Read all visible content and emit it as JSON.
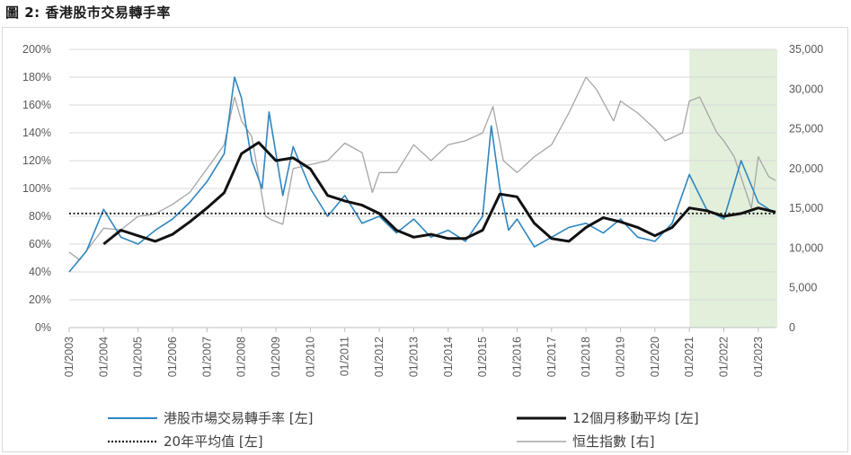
{
  "title": "圖 2:  香港股市交易轉手率",
  "colors": {
    "turnover": "#2e86c1",
    "ma12": "#111111",
    "avg20": "#222222",
    "hsi": "#a6a6a6",
    "shade": "#e2efda",
    "grid": "#d9d9d9"
  },
  "chart_data": {
    "type": "line",
    "title": "香港股市交易轉手率",
    "x_start": "01/2003",
    "x_end": "06/2023",
    "x_ticks": [
      "01/2003",
      "01/2004",
      "01/2005",
      "01/2006",
      "01/2007",
      "01/2008",
      "01/2009",
      "01/2010",
      "01/2011",
      "01/2012",
      "01/2013",
      "01/2014",
      "01/2015",
      "01/2016",
      "01/2017",
      "01/2018",
      "01/2019",
      "01/2020",
      "01/2021",
      "01/2022",
      "01/2023"
    ],
    "y_left": {
      "min": 0,
      "max": 200,
      "step": 20,
      "ticks": [
        "0%",
        "20%",
        "40%",
        "60%",
        "80%",
        "100%",
        "120%",
        "140%",
        "160%",
        "180%",
        "200%"
      ]
    },
    "y_right": {
      "min": 0,
      "max": 35000,
      "step": 5000,
      "ticks": [
        "0",
        "5,000",
        "10,000",
        "15,000",
        "20,000",
        "25,000",
        "30,000",
        "35,000"
      ]
    },
    "shaded_region": {
      "from": "01/2021",
      "to": "06/2023"
    },
    "series": [
      {
        "name": "港股市場交易轉手率 [左]",
        "axis": "left",
        "style": "thin-line",
        "x": [
          2003.0,
          2003.5,
          2004.0,
          2004.5,
          2005.0,
          2005.5,
          2006.0,
          2006.5,
          2007.0,
          2007.5,
          2007.8,
          2008.0,
          2008.3,
          2008.6,
          2008.8,
          2009.2,
          2009.5,
          2010.0,
          2010.5,
          2011.0,
          2011.5,
          2012.0,
          2012.5,
          2013.0,
          2013.5,
          2014.0,
          2014.5,
          2015.0,
          2015.25,
          2015.5,
          2015.75,
          2016.0,
          2016.5,
          2017.0,
          2017.5,
          2018.0,
          2018.5,
          2019.0,
          2019.5,
          2020.0,
          2020.5,
          2021.0,
          2021.5,
          2022.0,
          2022.5,
          2023.0,
          2023.5
        ],
        "values": [
          40,
          55,
          85,
          65,
          60,
          70,
          78,
          90,
          105,
          125,
          180,
          165,
          120,
          100,
          155,
          95,
          130,
          100,
          80,
          95,
          75,
          80,
          68,
          78,
          65,
          70,
          62,
          80,
          145,
          100,
          70,
          78,
          58,
          65,
          72,
          75,
          68,
          78,
          65,
          62,
          75,
          110,
          85,
          78,
          120,
          90,
          82
        ]
      },
      {
        "name": "12個月移動平均 [左]",
        "axis": "left",
        "style": "thick-line",
        "x": [
          2004.0,
          2004.5,
          2005.0,
          2005.5,
          2006.0,
          2006.5,
          2007.0,
          2007.5,
          2008.0,
          2008.5,
          2009.0,
          2009.5,
          2010.0,
          2010.5,
          2011.0,
          2011.5,
          2012.0,
          2012.5,
          2013.0,
          2013.5,
          2014.0,
          2014.5,
          2015.0,
          2015.5,
          2016.0,
          2016.5,
          2017.0,
          2017.5,
          2018.0,
          2018.5,
          2019.0,
          2019.5,
          2020.0,
          2020.5,
          2021.0,
          2021.5,
          2022.0,
          2022.5,
          2023.0,
          2023.5
        ],
        "values": [
          60,
          70,
          66,
          62,
          67,
          76,
          86,
          97,
          125,
          133,
          120,
          122,
          114,
          95,
          91,
          88,
          82,
          70,
          65,
          67,
          64,
          64,
          70,
          96,
          94,
          75,
          64,
          62,
          72,
          79,
          76,
          72,
          66,
          72,
          86,
          84,
          80,
          82,
          86,
          83
        ]
      },
      {
        "name": "20年平均值 [左]",
        "axis": "left",
        "style": "dotted",
        "x": [
          2003.0,
          2023.5
        ],
        "values": [
          82,
          82
        ]
      },
      {
        "name": "恒生指數 [右]",
        "axis": "right",
        "style": "thin-grey",
        "x": [
          2003.0,
          2003.3,
          2004.0,
          2004.5,
          2005.0,
          2005.5,
          2006.0,
          2006.5,
          2007.0,
          2007.5,
          2007.8,
          2008.0,
          2008.3,
          2008.7,
          2008.9,
          2009.2,
          2009.5,
          2010.0,
          2010.5,
          2011.0,
          2011.5,
          2011.8,
          2012.0,
          2012.5,
          2013.0,
          2013.5,
          2014.0,
          2014.5,
          2015.0,
          2015.3,
          2015.6,
          2016.0,
          2016.5,
          2017.0,
          2017.5,
          2018.0,
          2018.3,
          2018.8,
          2019.0,
          2019.5,
          2020.0,
          2020.3,
          2020.8,
          2021.0,
          2021.3,
          2021.8,
          2022.0,
          2022.3,
          2022.8,
          2023.0,
          2023.3,
          2023.5
        ],
        "values": [
          9500,
          8500,
          12500,
          12300,
          14000,
          14300,
          15500,
          17000,
          20000,
          23000,
          29000,
          26000,
          24000,
          14000,
          13500,
          13000,
          20000,
          20500,
          21000,
          23200,
          22000,
          17000,
          19500,
          19500,
          23000,
          21000,
          23000,
          23500,
          24500,
          27800,
          21000,
          19500,
          21500,
          23000,
          27000,
          31500,
          30000,
          26000,
          28500,
          27000,
          25000,
          23500,
          24500,
          28500,
          29000,
          24500,
          23500,
          21500,
          15000,
          21500,
          19000,
          18500
        ]
      }
    ],
    "legend": [
      "港股市場交易轉手率 [左]",
      "12個月移動平均 [左]",
      "20年平均值  [左]",
      "恒生指數 [右]"
    ]
  }
}
